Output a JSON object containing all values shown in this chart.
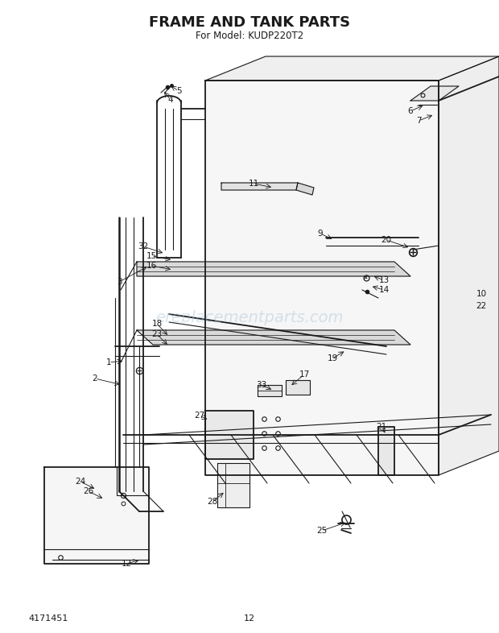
{
  "title": "FRAME AND TANK PARTS",
  "subtitle": "For Model: KUDP220T2",
  "part_number": "4171451",
  "page_number": "12",
  "bg": "#ffffff",
  "ink": "#1a1a1a",
  "watermark": "ereplacementparts.com",
  "wm_color": "#aac4d8",
  "wm_alpha": 0.45
}
